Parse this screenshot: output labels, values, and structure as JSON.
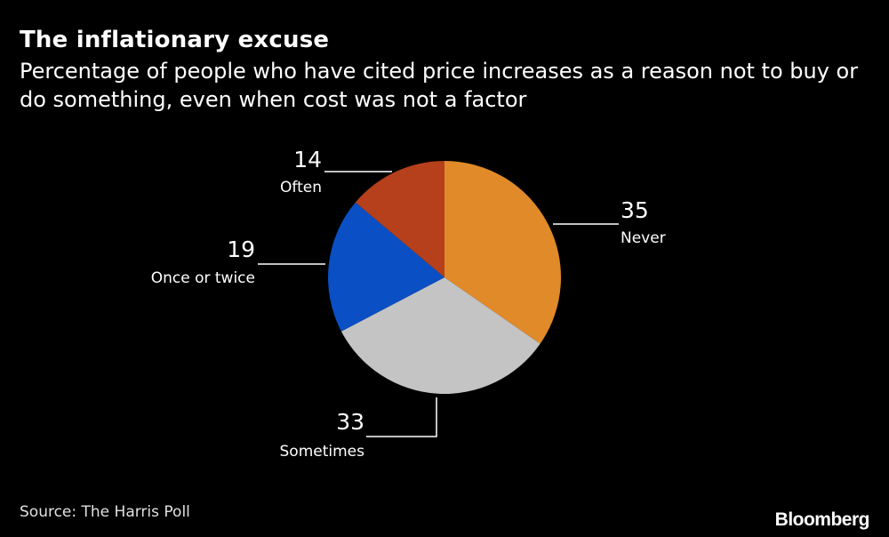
{
  "title": "The inflationary excuse",
  "subtitle": "Percentage of people who have cited price increases as a reason not to buy or do something, even when cost was not a factor",
  "source": "Source: The Harris Poll",
  "brand": "Bloomberg",
  "chart_data": {
    "type": "pie",
    "start": "12 o'clock",
    "direction": "clockwise",
    "slices": [
      {
        "label": "Never",
        "value": 35,
        "value_text": "35",
        "color": "#e08a2a"
      },
      {
        "label": "Sometimes",
        "value": 33,
        "value_text": "33",
        "color": "#c4c4c4"
      },
      {
        "label": "Once or twice",
        "value": 19,
        "value_text": "19",
        "color": "#0a4fc4"
      },
      {
        "label": "Often",
        "value": 14,
        "value_text": "14",
        "color": "#b5401b"
      }
    ]
  }
}
